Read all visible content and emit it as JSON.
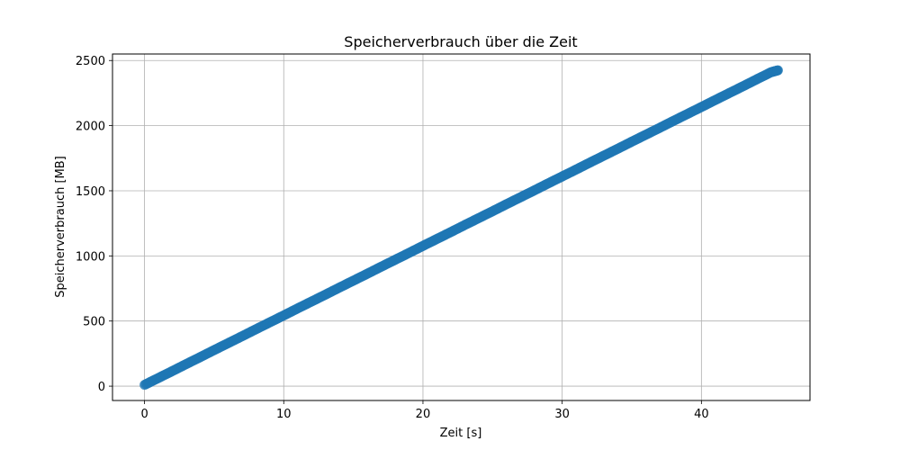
{
  "chart_data": {
    "type": "scatter",
    "title": "Speicherverbrauch über die Zeit",
    "xlabel": "Zeit [s]",
    "ylabel": "Speicherverbrauch [MB]",
    "xlim": [
      -2.3,
      47.8
    ],
    "ylim": [
      -110,
      2550
    ],
    "xticks": [
      0,
      10,
      20,
      30,
      40
    ],
    "yticks": [
      0,
      500,
      1000,
      1500,
      2000,
      2500
    ],
    "grid": true,
    "marker_color": "#1f77b4",
    "series": [
      {
        "x": [
          0,
          1,
          2,
          3,
          4,
          5,
          6,
          7,
          8,
          9,
          10,
          11,
          12,
          13,
          14,
          15,
          16,
          17,
          18,
          19,
          20,
          21,
          22,
          23,
          24,
          25,
          26,
          27,
          28,
          29,
          30,
          31,
          32,
          33,
          34,
          35,
          36,
          37,
          38,
          39,
          40,
          41,
          42,
          43,
          44,
          45,
          45.5
        ],
        "y": [
          10,
          63,
          116,
          170,
          223,
          277,
          330,
          383,
          437,
          490,
          543,
          597,
          650,
          703,
          757,
          810,
          863,
          917,
          970,
          1023,
          1077,
          1130,
          1183,
          1237,
          1290,
          1343,
          1397,
          1450,
          1503,
          1557,
          1610,
          1663,
          1717,
          1770,
          1823,
          1877,
          1930,
          1983,
          2037,
          2090,
          2143,
          2197,
          2250,
          2303,
          2357,
          2410,
          2425
        ]
      }
    ]
  }
}
